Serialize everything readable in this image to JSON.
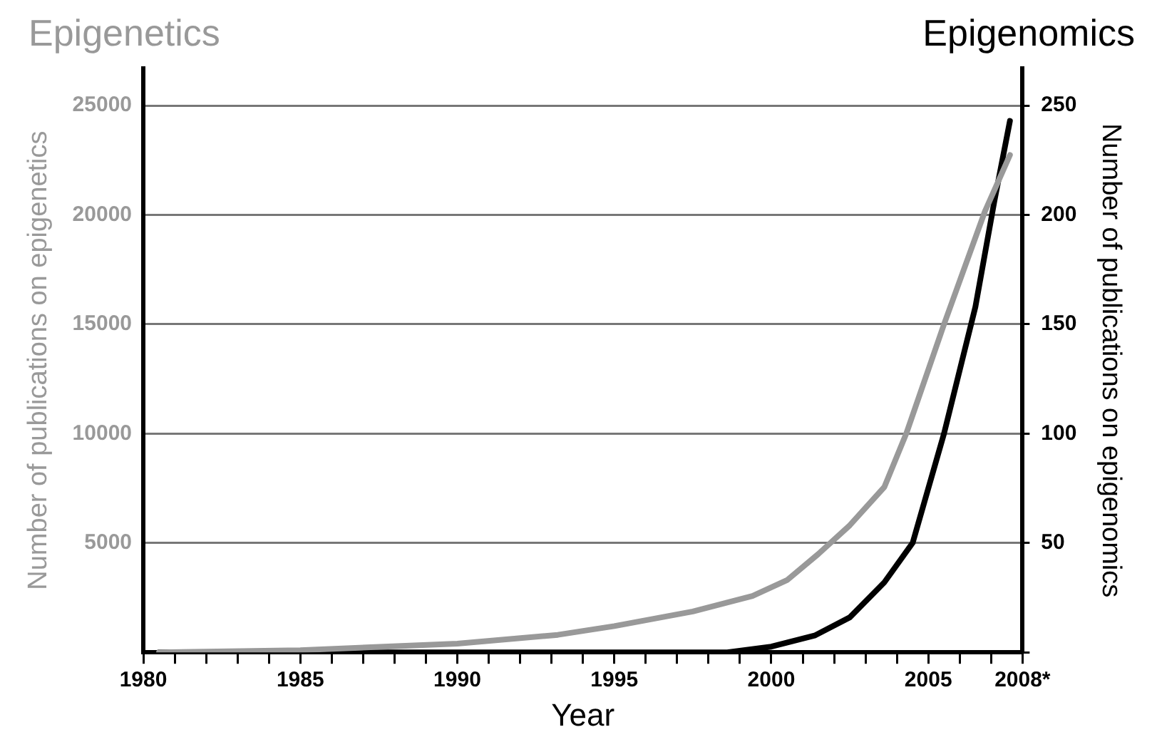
{
  "chart_data": {
    "type": "line",
    "xlabel": "Year",
    "ylabel": "Number of publications on epigenetics",
    "y2label": "Number of publications on epigenomics",
    "xlim": [
      1980,
      2008
    ],
    "xticks": [
      1980,
      {
        "value": 1981,
        "label": null
      },
      {
        "value": 1982,
        "label": null
      },
      {
        "value": 1983,
        "label": null
      },
      {
        "value": 1984,
        "label": null
      },
      1985,
      {
        "value": 1986,
        "label": null
      },
      {
        "value": 1987,
        "label": null
      },
      {
        "value": 1988,
        "label": null
      },
      {
        "value": 1989,
        "label": null
      },
      1990,
      {
        "value": 1991,
        "label": null
      },
      {
        "value": 1992,
        "label": null
      },
      {
        "value": 1993,
        "label": null
      },
      {
        "value": 1994,
        "label": null
      },
      1995,
      {
        "value": 1996,
        "label": null
      },
      {
        "value": 1997,
        "label": null
      },
      {
        "value": 1998,
        "label": null
      },
      {
        "value": 1999,
        "label": null
      },
      2000,
      {
        "value": 2001,
        "label": null
      },
      {
        "value": 2002,
        "label": null
      },
      {
        "value": 2003,
        "label": null
      },
      {
        "value": 2004,
        "label": null
      },
      2005,
      {
        "value": 2006,
        "label": null
      },
      {
        "value": 2007,
        "label": null
      },
      {
        "value": 2008,
        "label": "2008*"
      }
    ],
    "ylim": [
      0,
      26700
    ],
    "yticks": [
      {
        "value": 0,
        "label": null
      },
      5000,
      10000,
      15000,
      20000,
      25000
    ],
    "y2lim": [
      0,
      267
    ],
    "y2ticks": [
      {
        "value": 0,
        "label": null
      },
      50,
      100,
      150,
      200,
      250
    ],
    "grid": "y",
    "legend": false,
    "marker": "none",
    "line_style": "solid",
    "series": [
      {
        "name": "Epigenetics",
        "color": "#999999",
        "x": [
          1980.5,
          1985,
          1990,
          1993.2,
          1995,
          1997.5,
          1999.4,
          2000.5,
          2001.5,
          2002.5,
          2003.6,
          2004.3,
          2005.5,
          2006.8,
          2007.6
        ],
        "values": [
          0,
          100,
          400,
          800,
          1200,
          1870,
          2580,
          3300,
          4500,
          5810,
          7560,
          10010,
          15000,
          20150,
          22740
        ]
      },
      {
        "name": "Epigenomics",
        "color": "#000000",
        "axis": "y2",
        "x": [
          1980.5,
          1998.6,
          2000,
          2001.4,
          2002.5,
          2003.6,
          2004.5,
          2005.5,
          2006.5,
          2007.1,
          2007.6
        ],
        "values": [
          0,
          0,
          2.6,
          7.8,
          16,
          32,
          50,
          100,
          158,
          206,
          243
        ]
      }
    ]
  }
}
